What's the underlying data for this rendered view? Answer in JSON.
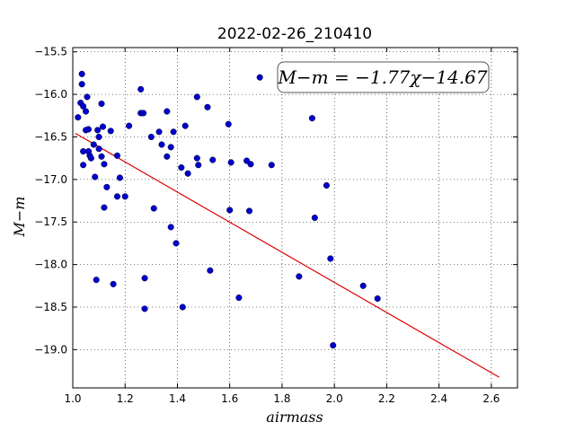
{
  "chart_data": {
    "type": "scatter",
    "title": "2022-02-26_210410",
    "xlabel": "airmass",
    "ylabel": "M−m",
    "xlim": [
      1.0,
      2.7
    ],
    "ylim": [
      -19.45,
      -15.45
    ],
    "y_inverted": true,
    "grid": true,
    "grid_style": "dotted",
    "xticks": [
      1.0,
      1.2,
      1.4,
      1.6,
      1.8,
      2.0,
      2.2,
      2.4,
      2.6
    ],
    "xtick_labels": [
      "1.0",
      "1.2",
      "1.4",
      "1.6",
      "1.8",
      "2.0",
      "2.2",
      "2.4",
      "2.6"
    ],
    "yticks": [
      -15.5,
      -16.0,
      -16.5,
      -17.0,
      -17.5,
      -18.0,
      -18.5,
      -19.0
    ],
    "ytick_labels": [
      "−15.5",
      "−16.0",
      "−16.5",
      "−17.0",
      "−17.5",
      "−18.0",
      "−18.5",
      "−19.0"
    ],
    "annotation": "M−m = −1.77χ−14.67",
    "marker_color": "#0000cc",
    "fit_color": "#dd0000",
    "fit_line": {
      "slope": -1.77,
      "intercept": -14.67,
      "x_range": [
        1.01,
        2.63
      ]
    },
    "points": [
      {
        "x": 1.02,
        "y": -16.27
      },
      {
        "x": 1.03,
        "y": -16.1
      },
      {
        "x": 1.035,
        "y": -15.76
      },
      {
        "x": 1.035,
        "y": -15.88
      },
      {
        "x": 1.04,
        "y": -16.14
      },
      {
        "x": 1.04,
        "y": -16.67
      },
      {
        "x": 1.04,
        "y": -16.83
      },
      {
        "x": 1.05,
        "y": -16.2
      },
      {
        "x": 1.05,
        "y": -16.42
      },
      {
        "x": 1.055,
        "y": -16.03
      },
      {
        "x": 1.06,
        "y": -16.41
      },
      {
        "x": 1.06,
        "y": -16.67
      },
      {
        "x": 1.065,
        "y": -16.72
      },
      {
        "x": 1.07,
        "y": -16.75
      },
      {
        "x": 1.08,
        "y": -16.59
      },
      {
        "x": 1.085,
        "y": -16.97
      },
      {
        "x": 1.09,
        "y": -18.18
      },
      {
        "x": 1.095,
        "y": -16.42
      },
      {
        "x": 1.1,
        "y": -16.5
      },
      {
        "x": 1.1,
        "y": -16.64
      },
      {
        "x": 1.11,
        "y": -16.11
      },
      {
        "x": 1.11,
        "y": -16.73
      },
      {
        "x": 1.115,
        "y": -16.38
      },
      {
        "x": 1.12,
        "y": -16.82
      },
      {
        "x": 1.12,
        "y": -17.33
      },
      {
        "x": 1.13,
        "y": -17.09
      },
      {
        "x": 1.145,
        "y": -16.43
      },
      {
        "x": 1.155,
        "y": -18.23
      },
      {
        "x": 1.17,
        "y": -16.72
      },
      {
        "x": 1.17,
        "y": -17.2
      },
      {
        "x": 1.18,
        "y": -16.98
      },
      {
        "x": 1.2,
        "y": -17.2
      },
      {
        "x": 1.215,
        "y": -16.37
      },
      {
        "x": 1.26,
        "y": -15.94
      },
      {
        "x": 1.26,
        "y": -16.22
      },
      {
        "x": 1.27,
        "y": -16.22
      },
      {
        "x": 1.275,
        "y": -18.16
      },
      {
        "x": 1.275,
        "y": -18.52
      },
      {
        "x": 1.3,
        "y": -16.5
      },
      {
        "x": 1.31,
        "y": -17.34
      },
      {
        "x": 1.33,
        "y": -16.44
      },
      {
        "x": 1.34,
        "y": -16.59
      },
      {
        "x": 1.36,
        "y": -16.2
      },
      {
        "x": 1.36,
        "y": -16.73
      },
      {
        "x": 1.375,
        "y": -16.62
      },
      {
        "x": 1.375,
        "y": -17.56
      },
      {
        "x": 1.385,
        "y": -16.44
      },
      {
        "x": 1.395,
        "y": -17.75
      },
      {
        "x": 1.415,
        "y": -16.86
      },
      {
        "x": 1.42,
        "y": -18.5
      },
      {
        "x": 1.43,
        "y": -16.37
      },
      {
        "x": 1.44,
        "y": -16.93
      },
      {
        "x": 1.475,
        "y": -16.03
      },
      {
        "x": 1.475,
        "y": -16.75
      },
      {
        "x": 1.48,
        "y": -16.83
      },
      {
        "x": 1.515,
        "y": -16.15
      },
      {
        "x": 1.525,
        "y": -18.07
      },
      {
        "x": 1.535,
        "y": -16.77
      },
      {
        "x": 1.595,
        "y": -16.35
      },
      {
        "x": 1.6,
        "y": -17.36
      },
      {
        "x": 1.605,
        "y": -16.8
      },
      {
        "x": 1.635,
        "y": -18.39
      },
      {
        "x": 1.665,
        "y": -16.78
      },
      {
        "x": 1.675,
        "y": -17.37
      },
      {
        "x": 1.68,
        "y": -16.82
      },
      {
        "x": 1.715,
        "y": -15.8
      },
      {
        "x": 1.76,
        "y": -16.83
      },
      {
        "x": 1.865,
        "y": -18.14
      },
      {
        "x": 1.915,
        "y": -16.28
      },
      {
        "x": 1.925,
        "y": -17.45
      },
      {
        "x": 1.97,
        "y": -17.07
      },
      {
        "x": 1.985,
        "y": -17.93
      },
      {
        "x": 1.995,
        "y": -18.95
      },
      {
        "x": 2.11,
        "y": -18.25
      },
      {
        "x": 2.165,
        "y": -18.4
      }
    ]
  }
}
